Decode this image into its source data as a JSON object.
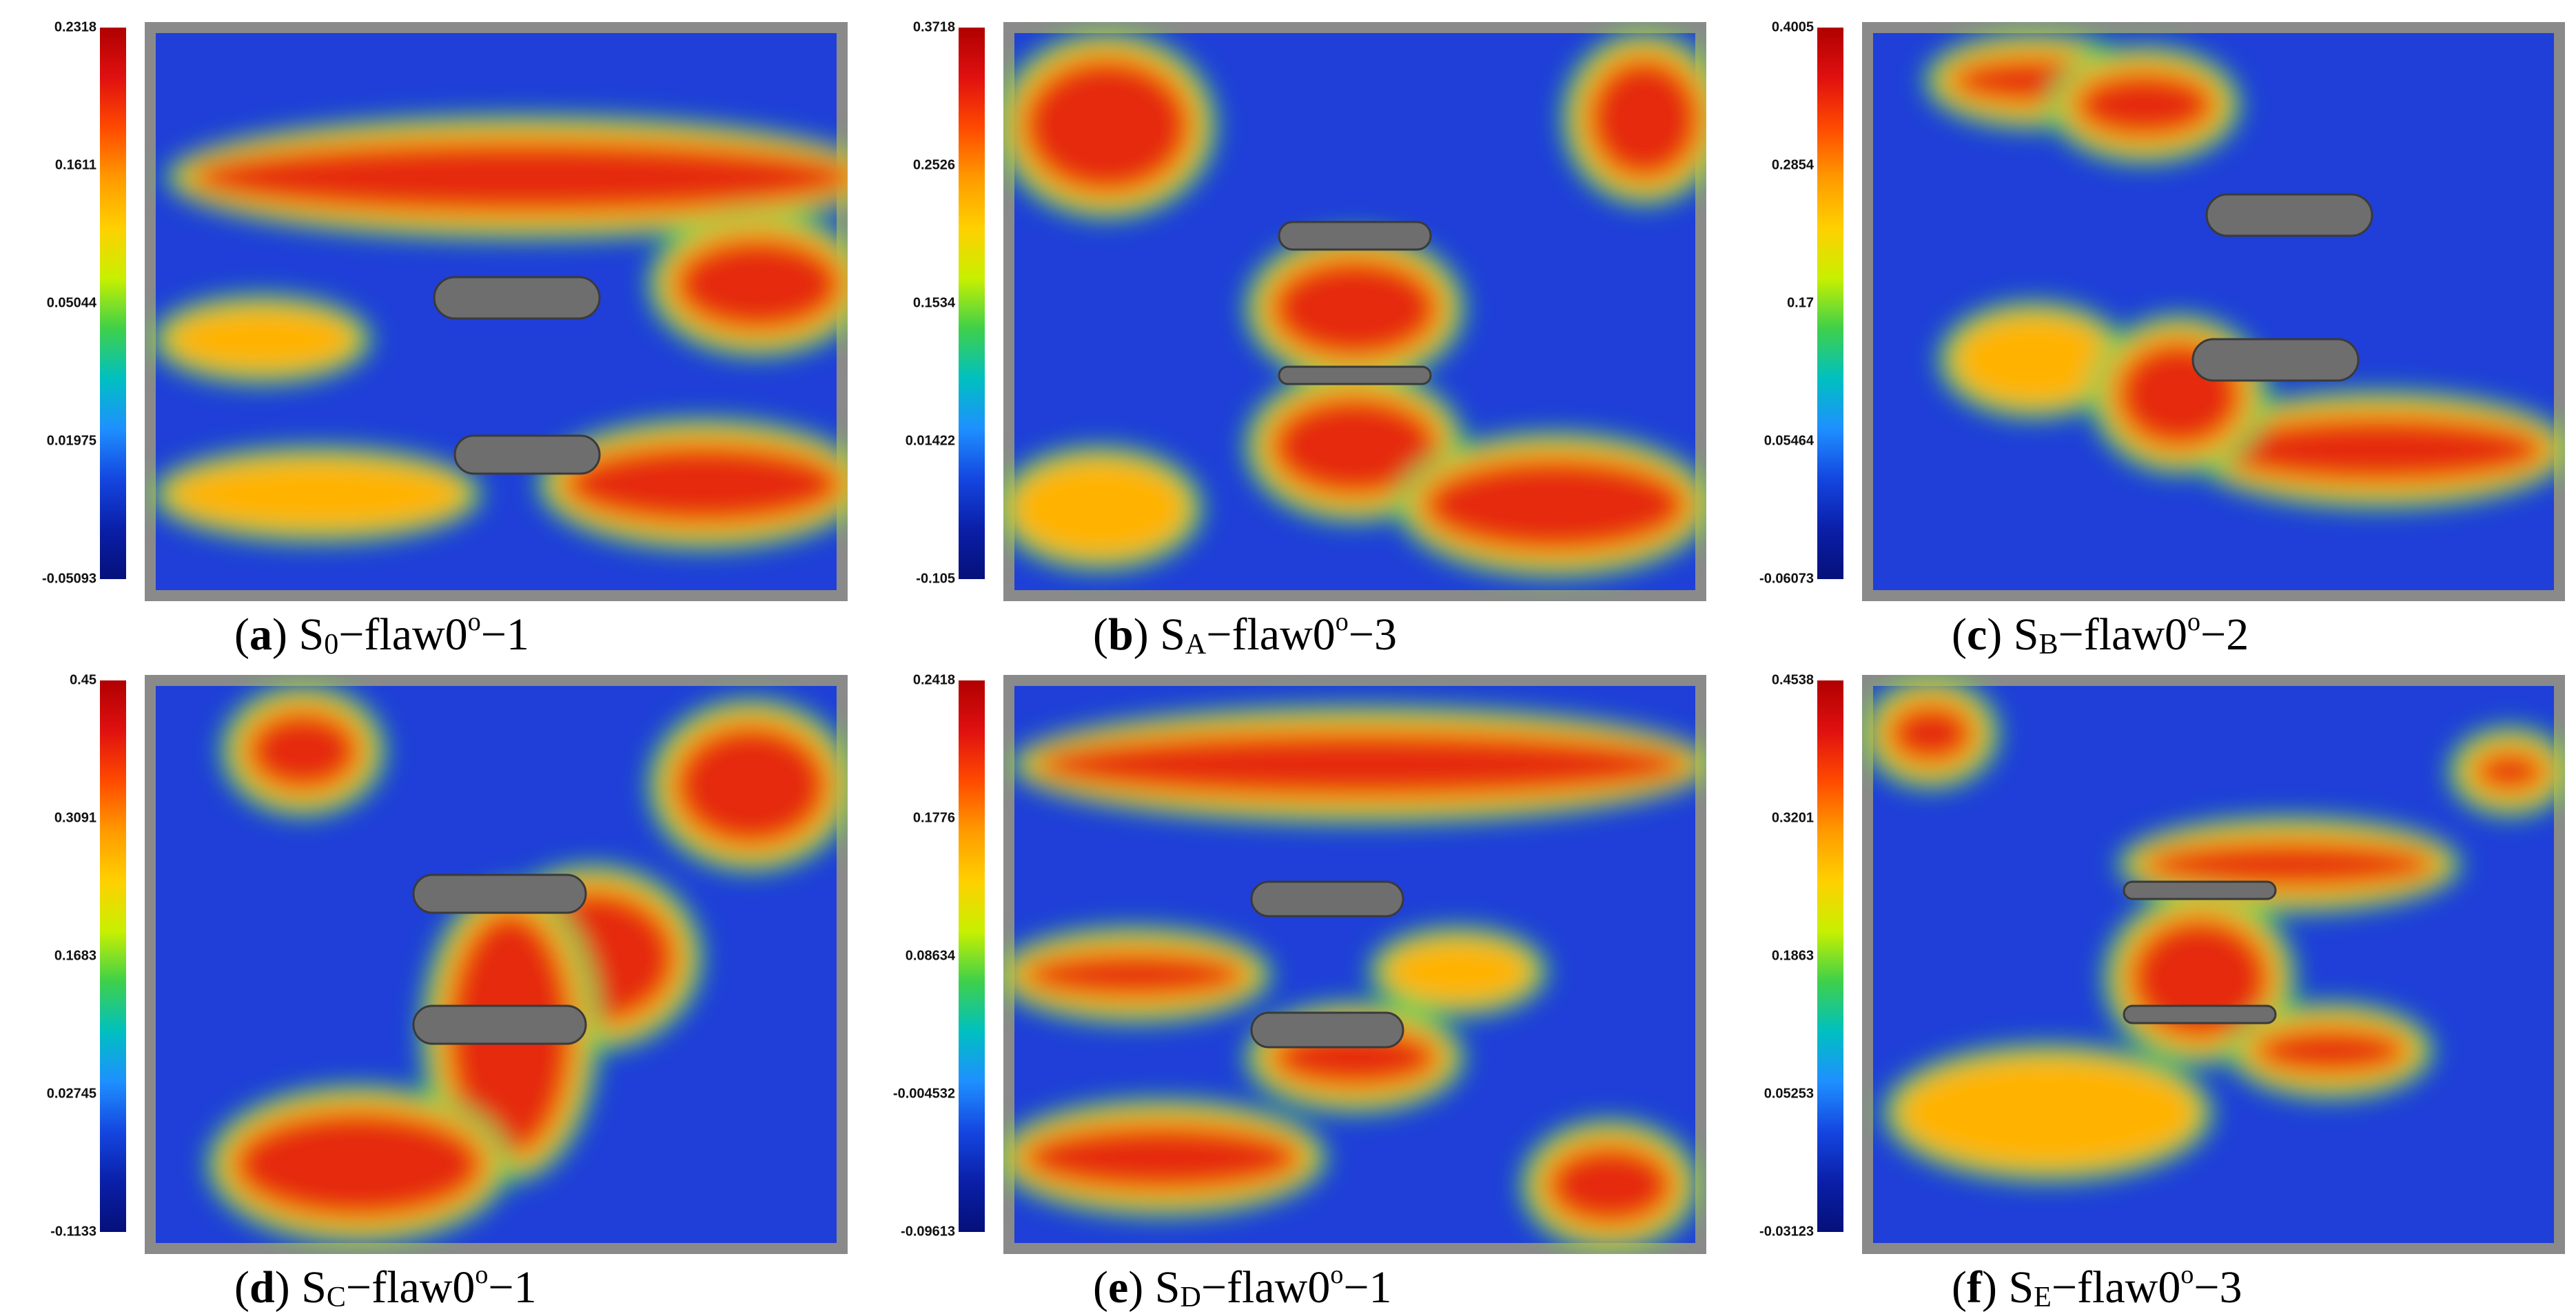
{
  "panels": [
    {
      "letter": "a",
      "prefix": "S",
      "sub": "0",
      "suffix": "−flaw0",
      "deg": "o",
      "end": "−1",
      "ticks": [
        "0.2318",
        "0.1611",
        "0.05044",
        "0.01975",
        "-0.05093"
      ]
    },
    {
      "letter": "b",
      "prefix": "S",
      "sub": "A",
      "suffix": "−flaw0",
      "deg": "o",
      "end": "−3",
      "ticks": [
        "0.3718",
        "0.2526",
        "0.1534",
        "0.01422",
        "-0.105"
      ]
    },
    {
      "letter": "c",
      "prefix": "S",
      "sub": "B",
      "suffix": "−flaw0",
      "deg": "o",
      "end": "−2",
      "ticks": [
        "0.4005",
        "0.2854",
        "0.17",
        "0.05464",
        "-0.06073"
      ]
    },
    {
      "letter": "d",
      "prefix": "S",
      "sub": "C",
      "suffix": "−flaw0",
      "deg": "o",
      "end": "−1",
      "ticks": [
        "0.45",
        "0.3091",
        "0.1683",
        "0.02745",
        "-0.1133"
      ]
    },
    {
      "letter": "e",
      "prefix": "S",
      "sub": "D",
      "suffix": "−flaw0",
      "deg": "o",
      "end": "−1",
      "ticks": [
        "0.2418",
        "0.1776",
        "0.08634",
        "-0.004532",
        "-0.09613"
      ]
    },
    {
      "letter": "f",
      "prefix": "S",
      "sub": "E",
      "suffix": "−flaw0",
      "deg": "o",
      "end": "−3",
      "ticks": [
        "0.4538",
        "0.3201",
        "0.1863",
        "0.05253",
        "-0.03123"
      ]
    }
  ],
  "colors": {
    "scale": [
      "#b00000",
      "#e01010",
      "#ff4a00",
      "#ff9a00",
      "#ffd000",
      "#c8f000",
      "#3fd04a",
      "#00c0c0",
      "#1e90ff",
      "#1446e0",
      "#0a1fa8",
      "#05107a"
    ],
    "background": "#1f3fd8",
    "hot": "#e52a10",
    "warm": "#ffb300",
    "mid": "#34d35a",
    "frame": "#8a8a8a"
  }
}
